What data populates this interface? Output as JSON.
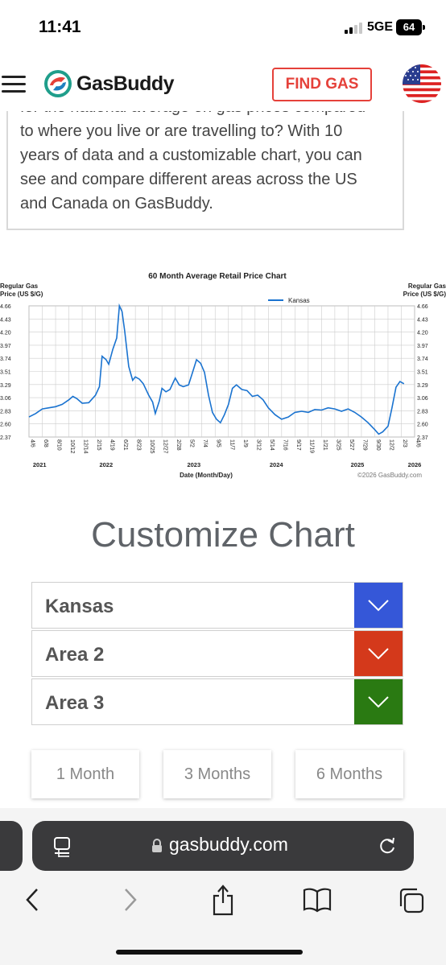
{
  "status": {
    "time": "11:41",
    "network": "5GE",
    "battery": "64"
  },
  "header": {
    "brand": "GasBuddy",
    "find_gas": "FIND GAS"
  },
  "article": {
    "lines": [
      "for the national average on gas prices compared",
      "to where you live or are travelling to? With 10",
      "years of data and a customizable chart, you can",
      "see and compare different areas across the US",
      "and Canada on GasBuddy."
    ]
  },
  "chart_data": {
    "type": "line",
    "title": "60 Month Average Retail Price Chart",
    "ylabel_left": [
      "Regular Gas",
      "Price (US $/G)"
    ],
    "ylabel_right": [
      "Regular Gas",
      "Price (US $/G)"
    ],
    "xlabel": "Date (Month/Day)",
    "credit": "©2026 GasBuddy.com",
    "ylim": [
      2.37,
      4.66
    ],
    "yticks": [
      "4.66",
      "4.43",
      "4.20",
      "3.97",
      "3.74",
      "3.51",
      "3.29",
      "3.06",
      "2.83",
      "2.60",
      "2.37"
    ],
    "xticks": [
      "4/6",
      "6/8",
      "8/10",
      "10/12",
      "12/14",
      "2/15",
      "4/19",
      "6/21",
      "8/23",
      "10/25",
      "12/27",
      "2/28",
      "5/2",
      "7/4",
      "9/5",
      "11/7",
      "1/9",
      "3/12",
      "5/14",
      "7/16",
      "9/17",
      "11/19",
      "1/21",
      "3/25",
      "5/27",
      "7/29",
      "9/30",
      "12/2",
      "2/3",
      "4/6"
    ],
    "years": [
      "2021",
      "2022",
      "2023",
      "2024",
      "2025",
      "2026"
    ],
    "legend": "top-center",
    "grid": true,
    "series": [
      {
        "name": "Kansas",
        "color": "#1a73d0",
        "points": [
          [
            0,
            2.72
          ],
          [
            0.5,
            2.78
          ],
          [
            1,
            2.86
          ],
          [
            1.5,
            2.88
          ],
          [
            2,
            2.9
          ],
          [
            2.5,
            2.94
          ],
          [
            3,
            3.02
          ],
          [
            3.3,
            3.08
          ],
          [
            3.6,
            3.04
          ],
          [
            4,
            2.96
          ],
          [
            4.5,
            2.97
          ],
          [
            5,
            3.1
          ],
          [
            5.3,
            3.25
          ],
          [
            5.5,
            3.78
          ],
          [
            5.8,
            3.72
          ],
          [
            6,
            3.64
          ],
          [
            6.3,
            3.9
          ],
          [
            6.6,
            4.1
          ],
          [
            6.8,
            4.66
          ],
          [
            7.0,
            4.56
          ],
          [
            7.2,
            4.22
          ],
          [
            7.5,
            3.6
          ],
          [
            7.8,
            3.36
          ],
          [
            8.0,
            3.42
          ],
          [
            8.3,
            3.38
          ],
          [
            8.6,
            3.3
          ],
          [
            9.0,
            3.1
          ],
          [
            9.3,
            2.98
          ],
          [
            9.5,
            2.78
          ],
          [
            9.8,
            3.0
          ],
          [
            10.0,
            3.22
          ],
          [
            10.3,
            3.16
          ],
          [
            10.6,
            3.2
          ],
          [
            11.0,
            3.4
          ],
          [
            11.3,
            3.28
          ],
          [
            11.6,
            3.25
          ],
          [
            12.0,
            3.28
          ],
          [
            12.3,
            3.5
          ],
          [
            12.6,
            3.72
          ],
          [
            12.9,
            3.66
          ],
          [
            13.2,
            3.5
          ],
          [
            13.5,
            3.1
          ],
          [
            13.8,
            2.8
          ],
          [
            14.1,
            2.68
          ],
          [
            14.4,
            2.62
          ],
          [
            14.7,
            2.76
          ],
          [
            15.0,
            2.94
          ],
          [
            15.3,
            3.22
          ],
          [
            15.6,
            3.28
          ],
          [
            16.0,
            3.2
          ],
          [
            16.4,
            3.18
          ],
          [
            16.8,
            3.08
          ],
          [
            17.2,
            3.1
          ],
          [
            17.6,
            3.02
          ],
          [
            18.0,
            2.88
          ],
          [
            18.5,
            2.76
          ],
          [
            19.0,
            2.68
          ],
          [
            19.5,
            2.72
          ],
          [
            20.0,
            2.8
          ],
          [
            20.5,
            2.82
          ],
          [
            21.0,
            2.8
          ],
          [
            21.5,
            2.85
          ],
          [
            22.0,
            2.84
          ],
          [
            22.5,
            2.88
          ],
          [
            23.0,
            2.86
          ],
          [
            23.5,
            2.82
          ],
          [
            24.0,
            2.86
          ],
          [
            24.5,
            2.8
          ],
          [
            25.0,
            2.72
          ],
          [
            25.5,
            2.62
          ],
          [
            26.0,
            2.5
          ],
          [
            26.3,
            2.42
          ],
          [
            26.6,
            2.46
          ],
          [
            27.0,
            2.56
          ],
          [
            27.3,
            2.88
          ],
          [
            27.6,
            3.24
          ],
          [
            27.9,
            3.34
          ],
          [
            28.2,
            3.3
          ]
        ]
      }
    ]
  },
  "customize": {
    "title": "Customize Chart",
    "areas": [
      {
        "label": "Kansas",
        "color": "#3557d8"
      },
      {
        "label": "Area 2",
        "color": "#d4391b"
      },
      {
        "label": "Area 3",
        "color": "#2a7a12"
      }
    ],
    "ranges": [
      "1 Month",
      "3 Months",
      "6 Months"
    ]
  },
  "browser": {
    "url": "gasbuddy.com"
  }
}
